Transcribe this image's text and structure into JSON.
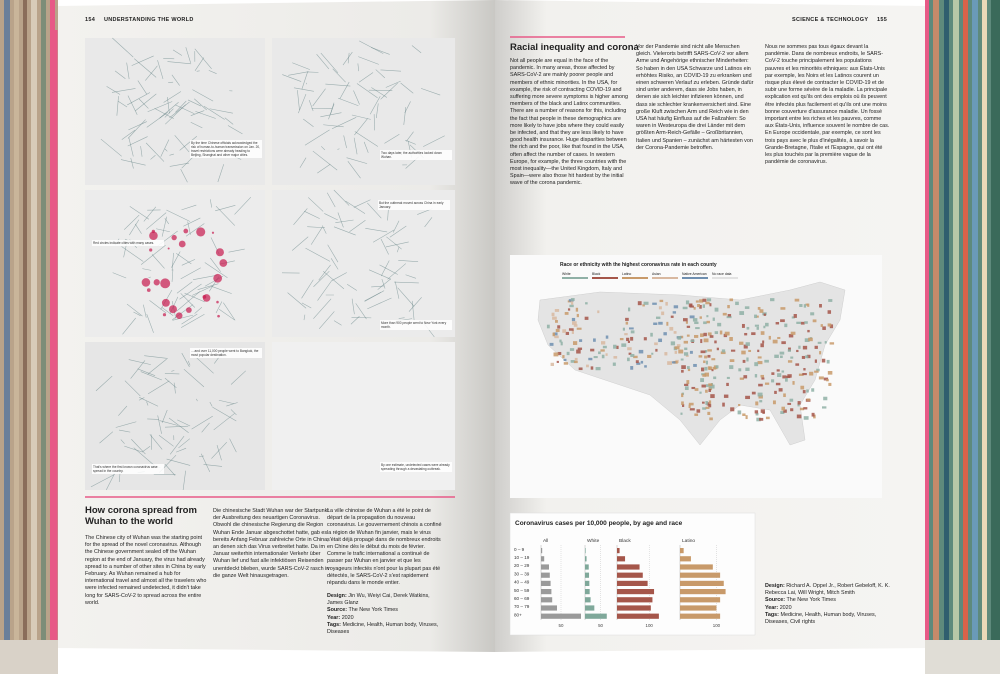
{
  "left_page": {
    "page_number": "154",
    "running_head": "UNDERSTANDING THE WORLD",
    "map_annotations": [
      "By the time Chinese officials acknowledged the risk of human-to-human transmission on Jan. 20, travel restrictions were already heading to Beijing, Shanghai and other major cities.",
      "Two days later, the authorities locked down Wuhan.",
      "But the outbreak moved across China in early January.",
      "Red circles indicate cities with many cases.",
      "More than 900 people went to New York every month.",
      "... and over 11,000 people went to Bangkok, the most popular destination.",
      "That's where the first known coronavirus case spread in the country.",
      "By one estimate, undetected cases were already spreading through a devastating outbreak."
    ],
    "title": "How corona spread from Wuhan to the world",
    "text_en": "The Chinese city of Wuhan was the starting point for the spread of the novel coronavirus. Although the Chinese government sealed off the Wuhan region at the end of January, the virus had already spread to a number of other sites in China by early February. As Wuhan remained a hub for international travel and almost all the travelers who were infected remained undetected, it didn't take long for SARS-CoV-2 to spread across the entire world.",
    "text_de": "Die chinesische Stadt Wuhan war der Startpunkt der Ausbreitung des neuartigen Coronavirus. Obwohl die chinesische Regierung die Region Wuhan Ende Januar abgeschottet hatte, gab es bereits Anfang Februar zahlreiche Orte in China, an denen sich das Virus verbreitet hatte. Da im Januar weiterhin internationaler Verkehr über Wuhan lief und fast alle infektiösen Reisenden unentdeckt blieben, wurde SARS-CoV-2 rasch in die ganze Welt hinausgetragen.",
    "text_fr": "La ville chinoise de Wuhan a été le point de départ de la propagation du nouveau coronavirus. Le gouvernement chinois a confiné la région de Wuhan fin janvier, mais le virus s'était déjà propagé dans de nombreux endroits en Chine dès le début du mois de février. Comme le trafic international a continué de passer par Wuhan en janvier et que les voyageurs infectés n'ont pour la plupart pas été détectés, le SARS-CoV-2 s'est rapidement répandu dans le monde entier.",
    "credits": [
      {
        "label": "Design:",
        "value": "Jin Wu, Weiyi Cai, Derek Watkins, James Glanz"
      },
      {
        "label": "Source:",
        "value": "The New York Times"
      },
      {
        "label": "Year:",
        "value": "2020"
      },
      {
        "label": "Tags:",
        "value": "Medicine, Health, Human body, Viruses, Diseases"
      }
    ]
  },
  "right_page": {
    "running_head": "SCIENCE & TECHNOLOGY",
    "page_number": "155",
    "title": "Racial inequality and corona",
    "text_en": "Not all people are equal in the face of the pandemic. In many areas, those affected by SARS-CoV-2 are mainly poorer people and members of ethnic minorities. In the USA, for example, the risk of contracting COVID-19 and suffering more severe symptoms is higher among members of the black and Latinx communities. There are a number of reasons for this, including the fact that people in these demographics are more likely to have jobs where they could easily be infected, and that they are less likely to have good health insurance. Huge disparities between the rich and the poor, like that found in the USA, often affect the number of cases. In western Europe, for example, the three countries with the most inequality—the United Kingdom, Italy and Spain—were also those hit hardest by the initial wave of the corona pandemic.",
    "text_de": "Vor der Pandemie sind nicht alle Menschen gleich. Vielerorts betrifft SARS-CoV-2 vor allem Arme und Angehörige ethnischer Minderheiten: So haben in den USA Schwarze und Latinos ein erhöhtes Risiko, an COVID-19 zu erkranken und einen schweren Verlauf zu erleben. Gründe dafür sind unter anderem, dass sie Jobs haben, in denen sie sich leichter infizieren können, und dass sie schlechter krankenversichert sind. Eine große Kluft zwischen Arm und Reich wie in den USA hat häufig Einfluss auf die Fallzahlen: So waren in Westeuropa die drei Länder mit dem größten Arm-Reich-Gefälle – Großbritannien, Italien und Spanien – zunächst am härtesten von der Corona-Pandemie betroffen.",
    "text_fr": "Nous ne sommes pas tous égaux devant la pandémie. Dans de nombreux endroits, le SARS-CoV-2 touche principalement les populations pauvres et les minorités ethniques: aux États-Unis par exemple, les Noirs et les Latinos courent un risque plus élevé de contracter le COVID-19 et de subir une forme sévère de la maladie. La principale explication est qu'ils ont des emplois où ils peuvent être infectés plus facilement et qu'ils ont une moins bonne couverture d'assurance maladie. Un fossé important entre les riches et les pauvres, comme aux États-Unis, influence souvent le nombre de cas. En Europe occidentale, par exemple, ce sont les trois pays avec le plus d'inégalités, à savoir la Grande-Bretagne, l'Italie et l'Espagne, qui ont été les plus touchés par la première vague de la pandémie de coronavirus.",
    "map": {
      "title": "Race or ethnicity with the highest coronavirus rate in each county",
      "legend": [
        "White",
        "Black",
        "Latino",
        "Asian",
        "Native American",
        "No race data"
      ],
      "legend_colors": [
        "#8fb0a6",
        "#a5564a",
        "#c89a6a",
        "#d8b8a0",
        "#6f8fb0",
        "#e2e2e2"
      ]
    },
    "bar_chart": {
      "type": "bar",
      "title": "Coronavirus cases per 10,000 people, by age and race",
      "categories": [
        "0 – 9",
        "10 – 19",
        "20 – 29",
        "30 – 39",
        "40 – 49",
        "50 – 59",
        "60 – 69",
        "70 – 79",
        "80+"
      ],
      "series": [
        {
          "name": "All",
          "color": "#9a9a9a",
          "values": [
            3,
            8,
            20,
            22,
            24,
            26,
            28,
            40,
            100
          ],
          "xlim": [
            0,
            105
          ],
          "xticks": [
            50
          ]
        },
        {
          "name": "White",
          "color": "#7fa89a",
          "values": [
            2,
            5,
            12,
            13,
            14,
            15,
            18,
            30,
            70
          ],
          "xlim": [
            0,
            90
          ],
          "xticks": [
            50
          ]
        },
        {
          "name": "Black",
          "color": "#a5564a",
          "values": [
            8,
            25,
            70,
            80,
            95,
            115,
            110,
            105,
            130
          ],
          "xlim": [
            0,
            180
          ],
          "xticks": [
            100
          ]
        },
        {
          "name": "Latino",
          "color": "#c89a6a",
          "values": [
            10,
            30,
            90,
            110,
            120,
            125,
            110,
            100,
            110
          ],
          "xlim": [
            0,
            170
          ],
          "xticks": [
            100
          ]
        }
      ]
    },
    "credits": [
      {
        "label": "Design:",
        "value": "Richard A. Oppel Jr., Robert Gebeloff, K. K. Rebecca Lai, Will Wright, Mitch Smith"
      },
      {
        "label": "Source:",
        "value": "The New York Times"
      },
      {
        "label": "Year:",
        "value": "2020"
      },
      {
        "label": "Tags:",
        "value": "Medicine, Health, Human body, Viruses, Diseases, Civil rights"
      }
    ]
  }
}
